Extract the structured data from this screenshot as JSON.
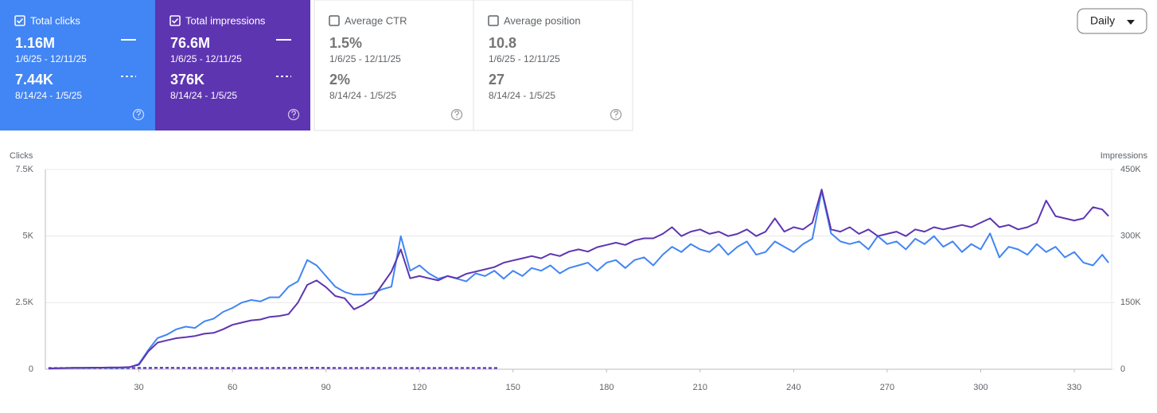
{
  "cards": [
    {
      "label": "Total clicks",
      "checked": true,
      "color": "#4285f4",
      "value": "1.16M",
      "range": "1/6/25 - 12/11/25",
      "previous_value": "7.44K",
      "previous_range": "8/14/24 - 1/5/25"
    },
    {
      "label": "Total impressions",
      "checked": true,
      "color": "#5e35b1",
      "value": "76.6M",
      "range": "1/6/25 - 12/11/25",
      "previous_value": "376K",
      "previous_range": "8/14/24 - 1/5/25"
    },
    {
      "label": "Average CTR",
      "checked": false,
      "value": "1.5%",
      "range": "1/6/25 - 12/11/25",
      "previous_value": "2%",
      "previous_range": "8/14/24 - 1/5/25"
    },
    {
      "label": "Average position",
      "checked": false,
      "value": "10.8",
      "range": "1/6/25 - 12/11/25",
      "previous_value": "27",
      "previous_range": "8/14/24 - 1/5/25"
    }
  ],
  "granularity": "Daily",
  "chart_data": {
    "type": "line",
    "y_label": "Clicks",
    "y2_label": "Impressions",
    "xlim": [
      0,
      342
    ],
    "xticks": [
      30,
      60,
      90,
      120,
      150,
      180,
      210,
      240,
      270,
      300,
      330
    ],
    "ylim": [
      0,
      7500
    ],
    "yticks": [
      0,
      {
        "value": 2500,
        "label": "2.5K"
      },
      {
        "value": 5000,
        "label": "5K"
      },
      {
        "value": 7500,
        "label": "7.5K"
      }
    ],
    "y2lim": [
      0,
      450000
    ],
    "y2ticks": [
      0,
      {
        "value": 150000,
        "label": "150K"
      },
      {
        "value": 300000,
        "label": "300K"
      },
      {
        "value": 450000,
        "label": "450K"
      }
    ],
    "grid": true,
    "x": [
      1,
      3,
      6,
      9,
      12,
      15,
      18,
      21,
      24,
      27,
      30,
      33,
      36,
      39,
      42,
      45,
      48,
      51,
      54,
      57,
      60,
      63,
      66,
      69,
      72,
      75,
      78,
      81,
      84,
      87,
      90,
      93,
      96,
      99,
      102,
      105,
      108,
      111,
      114,
      117,
      120,
      123,
      126,
      129,
      132,
      135,
      138,
      141,
      144,
      147,
      150,
      153,
      156,
      159,
      162,
      165,
      168,
      171,
      174,
      177,
      180,
      183,
      186,
      189,
      192,
      195,
      198,
      201,
      204,
      207,
      210,
      213,
      216,
      219,
      222,
      225,
      228,
      231,
      234,
      237,
      240,
      243,
      246,
      249,
      252,
      255,
      258,
      261,
      264,
      267,
      270,
      273,
      276,
      279,
      282,
      285,
      288,
      291,
      294,
      297,
      300,
      303,
      306,
      309,
      312,
      315,
      318,
      321,
      324,
      327,
      330,
      333,
      336,
      339,
      341
    ],
    "series": [
      {
        "color": "#4285f4",
        "dashed": true,
        "x": [
          1,
          13,
          25,
          37,
          49,
          61,
          73,
          85,
          97,
          109,
          121,
          133,
          145
        ],
        "values": [
          50,
          55,
          50,
          60,
          55,
          50,
          55,
          60,
          50,
          55,
          50,
          55,
          50
        ]
      },
      {
        "color": "#5e35b1",
        "dashed": true,
        "axis": "y2",
        "x": [
          1,
          13,
          25,
          37,
          49,
          61,
          73,
          85,
          97,
          109,
          121,
          133,
          145
        ],
        "values": [
          2600,
          2700,
          2500,
          2800,
          2600,
          2500,
          2700,
          2800,
          2600,
          2700,
          2500,
          2600,
          2500
        ]
      },
      {
        "color": "#4285f4",
        "values": [
          30,
          40,
          45,
          50,
          55,
          50,
          60,
          55,
          60,
          70,
          200,
          720,
          1170,
          1300,
          1500,
          1600,
          1550,
          1800,
          1900,
          2150,
          2300,
          2500,
          2600,
          2550,
          2700,
          2700,
          3100,
          3300,
          4100,
          3900,
          3500,
          3100,
          2900,
          2800,
          2800,
          2850,
          3000,
          3100,
          5000,
          3700,
          3900,
          3600,
          3400,
          3500,
          3400,
          3300,
          3600,
          3500,
          3700,
          3400,
          3700,
          3500,
          3800,
          3700,
          3900,
          3600,
          3800,
          3900,
          4000,
          3700,
          4000,
          4100,
          3800,
          4100,
          4200,
          3900,
          4300,
          4600,
          4400,
          4700,
          4500,
          4400,
          4700,
          4300,
          4600,
          4800,
          4300,
          4400,
          4800,
          4600,
          4400,
          4700,
          4900,
          6700,
          5100,
          4800,
          4700,
          4800,
          4500,
          5000,
          4700,
          4800,
          4500,
          4900,
          4700,
          5000,
          4600,
          4800,
          4400,
          4700,
          4500,
          5100,
          4200,
          4600,
          4500,
          4300,
          4700,
          4400,
          4600,
          4200,
          4400,
          4000,
          3900,
          4300,
          4000
        ]
      },
      {
        "color": "#5e35b1",
        "axis": "y2",
        "values": [
          1500,
          2000,
          2500,
          3000,
          3000,
          3500,
          3500,
          4000,
          4000,
          5000,
          10000,
          40000,
          60000,
          65000,
          70000,
          72000,
          75000,
          80000,
          82000,
          90000,
          100000,
          105000,
          110000,
          112000,
          118000,
          120000,
          124000,
          150000,
          190000,
          200000,
          185000,
          165000,
          160000,
          135000,
          145000,
          160000,
          190000,
          220000,
          270000,
          205000,
          210000,
          205000,
          200000,
          210000,
          205000,
          215000,
          220000,
          225000,
          230000,
          240000,
          245000,
          250000,
          255000,
          250000,
          260000,
          255000,
          265000,
          270000,
          265000,
          275000,
          280000,
          285000,
          280000,
          290000,
          295000,
          295000,
          305000,
          320000,
          300000,
          310000,
          315000,
          305000,
          310000,
          300000,
          305000,
          315000,
          300000,
          310000,
          340000,
          310000,
          320000,
          315000,
          330000,
          405000,
          315000,
          310000,
          320000,
          305000,
          315000,
          300000,
          305000,
          310000,
          300000,
          315000,
          310000,
          320000,
          315000,
          320000,
          325000,
          320000,
          330000,
          340000,
          320000,
          325000,
          315000,
          320000,
          330000,
          380000,
          345000,
          340000,
          335000,
          340000,
          365000,
          360000,
          345000
        ]
      }
    ]
  }
}
